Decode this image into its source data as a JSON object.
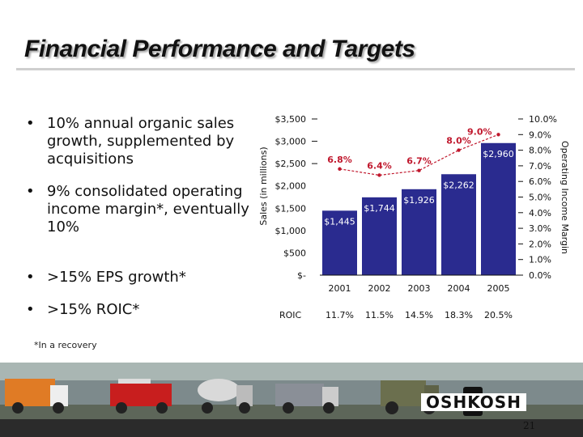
{
  "slide": {
    "title": "Financial Performance and Targets",
    "bullets": [
      "10% annual organic sales growth, supplemented by acquisitions",
      "9% consolidated operating income margin*, eventually 10%",
      ">15% EPS growth*",
      ">15% ROIC*"
    ],
    "bullet_symbol": "•",
    "footnote": "*In a recovery",
    "page_number": "21",
    "logo_text": "OSHKOSH"
  },
  "chart_data": {
    "type": "bar",
    "categories": [
      "2001",
      "2002",
      "2003",
      "2004",
      "2005"
    ],
    "series": [
      {
        "values": [
          1445,
          1744,
          1926,
          2262,
          2960
        ],
        "labels": [
          "$1,445",
          "$1,744",
          "$1,926",
          "$2,262",
          "$2,960"
        ]
      },
      {
        "type": "line",
        "axis": "right",
        "values": [
          6.8,
          6.4,
          6.7,
          8.0,
          9.0
        ],
        "labels": [
          "6.8%",
          "6.4%",
          "6.7%",
          "8.0%",
          "9.0%"
        ]
      }
    ],
    "ylabel": "Sales (in millions)",
    "y2label": "Operating Income Margin",
    "ylim": [
      0,
      3500
    ],
    "y2lim": [
      0,
      10
    ],
    "y_ticks": [
      "$-",
      "$500",
      "$1,000",
      "$1,500",
      "$2,000",
      "$2,500",
      "$3,000",
      "$3,500"
    ],
    "y2_ticks": [
      "0.0%",
      "1.0%",
      "2.0%",
      "3.0%",
      "4.0%",
      "5.0%",
      "6.0%",
      "7.0%",
      "8.0%",
      "9.0%",
      "10.0%"
    ],
    "roic_label": "ROIC",
    "roic_values": [
      "11.7%",
      "11.5%",
      "14.5%",
      "18.3%",
      "20.5%"
    ],
    "colors": {
      "bar": "#2a2b8f",
      "line": "#c0182d",
      "bar_label": "#ffffff"
    }
  }
}
